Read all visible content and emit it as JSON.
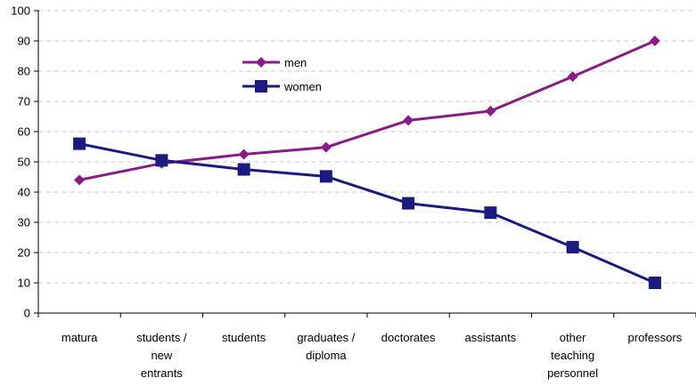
{
  "chart_data": {
    "type": "line",
    "title": "",
    "xlabel": "",
    "ylabel": "",
    "ylim": [
      0,
      100
    ],
    "yticks": [
      0,
      10,
      20,
      30,
      40,
      50,
      60,
      70,
      80,
      90,
      100
    ],
    "grid": "horizontal-dashed",
    "legend_position": "top-left-inside",
    "categories": [
      [
        "matura"
      ],
      [
        "students /",
        "new",
        "entrants"
      ],
      [
        "students"
      ],
      [
        "graduates /",
        "diploma"
      ],
      [
        "doctorates"
      ],
      [
        "assistants"
      ],
      [
        "other",
        "teaching",
        "personnel"
      ],
      [
        "professors"
      ]
    ],
    "series": [
      {
        "name": "men",
        "color": "#8B1A89",
        "marker": "diamond",
        "values": [
          44,
          49.5,
          52.5,
          54.8,
          63.7,
          66.8,
          78.2,
          90
        ]
      },
      {
        "name": "women",
        "color": "#1A1A80",
        "marker": "square",
        "values": [
          56,
          50.5,
          47.5,
          45.2,
          36.3,
          33.2,
          21.8,
          10
        ]
      }
    ]
  }
}
